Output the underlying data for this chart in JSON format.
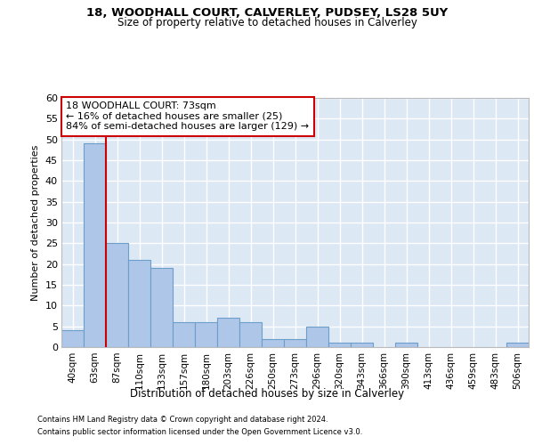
{
  "title1": "18, WOODHALL COURT, CALVERLEY, PUDSEY, LS28 5UY",
  "title2": "Size of property relative to detached houses in Calverley",
  "xlabel": "Distribution of detached houses by size in Calverley",
  "ylabel": "Number of detached properties",
  "categories": [
    "40sqm",
    "63sqm",
    "87sqm",
    "110sqm",
    "133sqm",
    "157sqm",
    "180sqm",
    "203sqm",
    "226sqm",
    "250sqm",
    "273sqm",
    "296sqm",
    "320sqm",
    "343sqm",
    "366sqm",
    "390sqm",
    "413sqm",
    "436sqm",
    "459sqm",
    "483sqm",
    "506sqm"
  ],
  "values": [
    4,
    49,
    25,
    21,
    19,
    6,
    6,
    7,
    6,
    2,
    2,
    5,
    1,
    1,
    0,
    1,
    0,
    0,
    0,
    0,
    1
  ],
  "bar_color": "#aec6e8",
  "bar_edge_color": "#6b9ec8",
  "bg_color": "#dde8f5",
  "grid_color": "#ffffff",
  "annotation_box_text": "18 WOODHALL COURT: 73sqm\n← 16% of detached houses are smaller (25)\n84% of semi-detached houses are larger (129) →",
  "annotation_box_color": "#ffffff",
  "annotation_box_edge_color": "#cc0000",
  "red_line_color": "#cc0000",
  "footer1": "Contains HM Land Registry data © Crown copyright and database right 2024.",
  "footer2": "Contains public sector information licensed under the Open Government Licence v3.0.",
  "ylim": [
    0,
    60
  ],
  "yticks": [
    0,
    5,
    10,
    15,
    20,
    25,
    30,
    35,
    40,
    45,
    50,
    55,
    60
  ]
}
